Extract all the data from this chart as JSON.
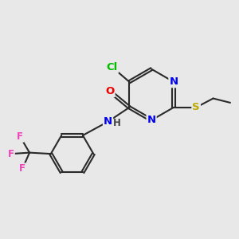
{
  "bg_color": "#e8e8e8",
  "bond_color": "#2a2a2a",
  "bond_width": 1.5,
  "atom_colors": {
    "Cl": "#00bb00",
    "N": "#0000ee",
    "O": "#ee0000",
    "S": "#bbaa00",
    "F": "#ee44bb",
    "H": "#444444",
    "C": "#2a2a2a"
  },
  "fs": 9.5,
  "fs_small": 8.5,
  "dbo": 0.055
}
